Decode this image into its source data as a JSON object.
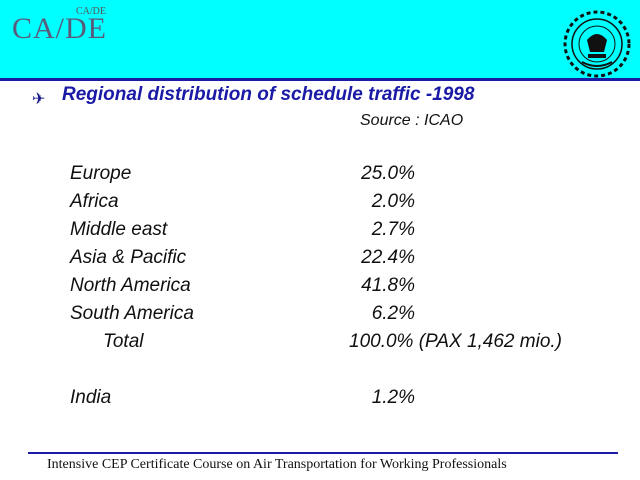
{
  "header": {
    "logo_small": "CA/DE",
    "logo_main": "CA/DE"
  },
  "heading": "Regional distribution of schedule traffic -1998",
  "source": "Source : ICAO",
  "rows": [
    {
      "region": "Europe",
      "share": "25.0%"
    },
    {
      "region": "Africa",
      "share": "2.0%"
    },
    {
      "region": "Middle east",
      "share": "2.7%"
    },
    {
      "region": "Asia & Pacific",
      "share": "22.4%"
    },
    {
      "region": "North America",
      "share": "41.8%"
    },
    {
      "region": "South America",
      "share": "6.2%"
    },
    {
      "region": "Total",
      "share": "100.0%",
      "note": "(PAX 1,462 mio.)"
    },
    {
      "region": "India",
      "share": "1.2%"
    }
  ],
  "footer": "Intensive CEP Certificate Course on Air Transportation for Working Professionals",
  "colors": {
    "header_band": "#00ffff",
    "accent": "#1a1aa6"
  }
}
